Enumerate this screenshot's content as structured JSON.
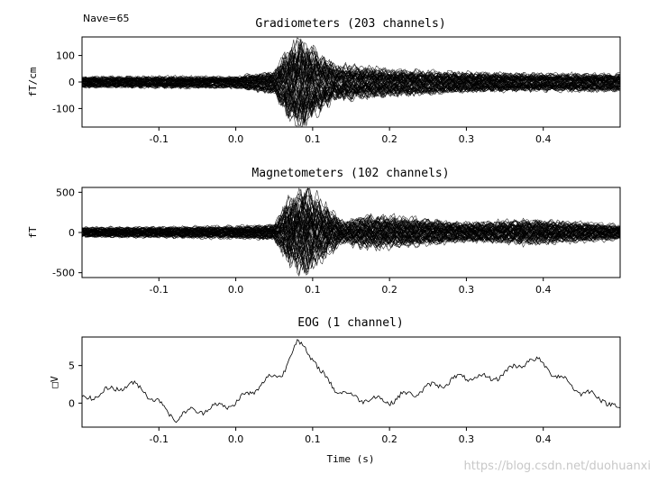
{
  "nave_label": "Nave=65",
  "watermark": "https://blog.csdn.net/duohuanxi",
  "chart_data": [
    {
      "type": "line",
      "title": "Gradiometers (203 channels)",
      "xlabel": "",
      "ylabel": "fT/cm",
      "xlim": [
        -0.2,
        0.5
      ],
      "ylim": [
        -170,
        170
      ],
      "xticks": [
        "-0.1",
        "0.0",
        "0.1",
        "0.2",
        "0.3",
        "0.4"
      ],
      "yticks": [
        "100",
        "0",
        "-100"
      ],
      "n_channels": 203,
      "color": "#000000",
      "envelope": {
        "t": [
          -0.2,
          -0.1,
          0.0,
          0.05,
          0.07,
          0.085,
          0.1,
          0.13,
          0.16,
          0.2,
          0.3,
          0.4,
          0.5
        ],
        "amplitude": [
          20,
          20,
          20,
          40,
          130,
          155,
          120,
          60,
          55,
          45,
          35,
          30,
          30
        ]
      }
    },
    {
      "type": "line",
      "title": "Magnetometers (102 channels)",
      "xlabel": "",
      "ylabel": "fT",
      "xlim": [
        -0.2,
        0.5
      ],
      "ylim": [
        -560,
        560
      ],
      "xticks": [
        "-0.1",
        "0.0",
        "0.1",
        "0.2",
        "0.3",
        "0.4"
      ],
      "yticks": [
        "500",
        "0",
        "-500"
      ],
      "n_channels": 102,
      "color": "#000000",
      "envelope": {
        "t": [
          -0.2,
          -0.1,
          0.0,
          0.05,
          0.07,
          0.09,
          0.11,
          0.14,
          0.17,
          0.2,
          0.3,
          0.38,
          0.5
        ],
        "amplitude": [
          60,
          60,
          70,
          90,
          400,
          520,
          350,
          120,
          180,
          170,
          110,
          140,
          80
        ]
      }
    },
    {
      "type": "line",
      "title": "EOG (1 channel)",
      "xlabel": "Time (s)",
      "ylabel": "□V",
      "xlim": [
        -0.2,
        0.5
      ],
      "ylim": [
        -3.2,
        8.8
      ],
      "xticks": [
        "-0.1",
        "0.0",
        "0.1",
        "0.2",
        "0.3",
        "0.4"
      ],
      "yticks": [
        "5",
        "0"
      ],
      "color": "#000000",
      "series": [
        {
          "x": [
            -0.2,
            -0.17,
            -0.14,
            -0.12,
            -0.1,
            -0.08,
            -0.06,
            -0.04,
            -0.02,
            0.0,
            0.02,
            0.04,
            0.06,
            0.07,
            0.08,
            0.09,
            0.1,
            0.11,
            0.13,
            0.15,
            0.18,
            0.2,
            0.22,
            0.25,
            0.28,
            0.3,
            0.33,
            0.36,
            0.38,
            0.4,
            0.42,
            0.45,
            0.48,
            0.5
          ],
          "values": [
            0.5,
            1.5,
            2.5,
            1.8,
            0.0,
            -2.0,
            -1.2,
            -0.8,
            -0.4,
            0.0,
            1.5,
            3.0,
            4.0,
            6.0,
            8.0,
            7.5,
            6.0,
            4.0,
            2.0,
            0.8,
            0.5,
            0.3,
            1.0,
            2.0,
            3.0,
            3.5,
            3.2,
            4.5,
            5.8,
            5.2,
            3.5,
            1.5,
            0.5,
            -1.0
          ]
        }
      ]
    }
  ]
}
